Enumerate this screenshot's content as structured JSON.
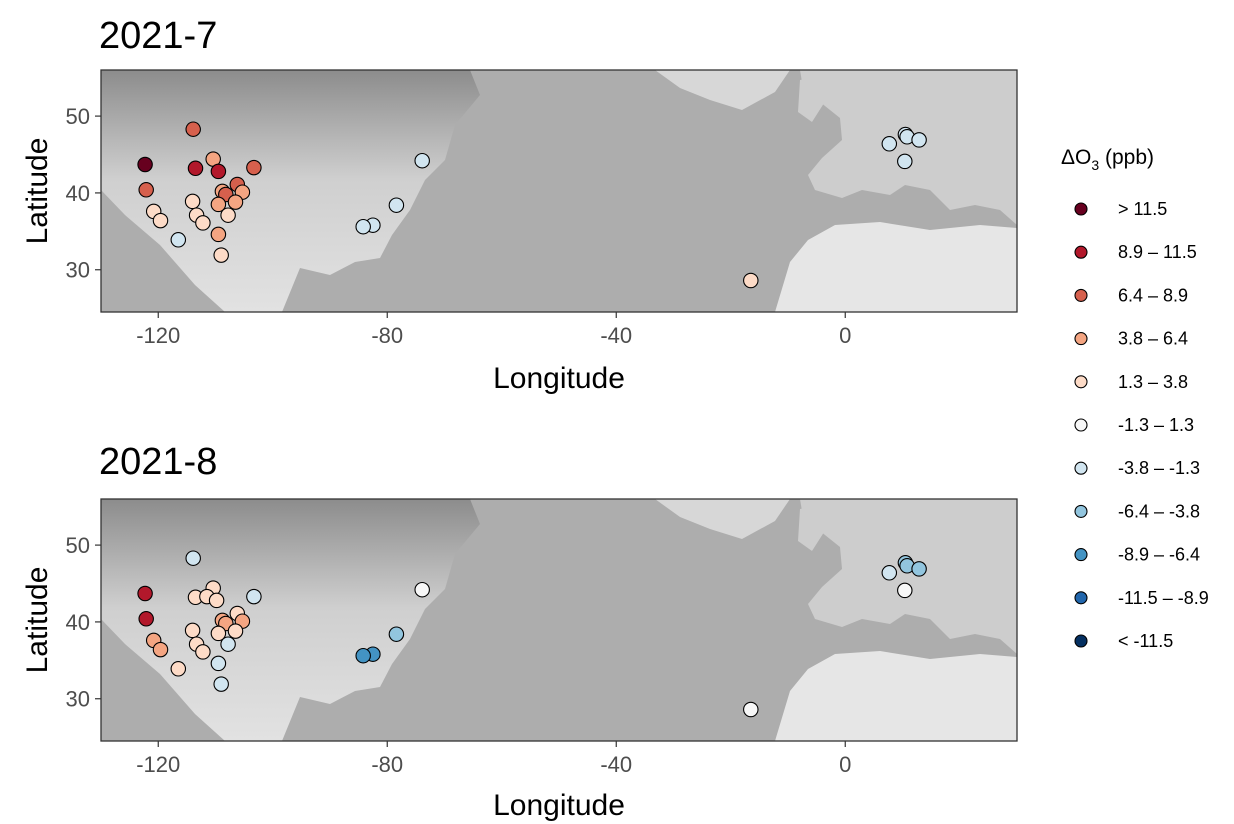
{
  "chart_data": [
    {
      "type": "scatter",
      "title": "2021-7",
      "xlabel": "Longitude",
      "ylabel": "Latitude",
      "xlim": [
        -130,
        30
      ],
      "ylim": [
        24.5,
        56
      ],
      "xticks": [
        -120,
        -80,
        -40,
        0
      ],
      "yticks": [
        30,
        40,
        50
      ],
      "xtick_labels": [
        "-120",
        "-80",
        "-40",
        "0"
      ],
      "ytick_labels": [
        "30",
        "40",
        "50"
      ],
      "background": "grayscale relief basemap",
      "points": [
        {
          "lon": -122.3,
          "lat": 43.7,
          "value": 12.5
        },
        {
          "lon": -122.1,
          "lat": 40.4,
          "value": 7.5
        },
        {
          "lon": -113.9,
          "lat": 48.3,
          "value": 7.5
        },
        {
          "lon": -113.5,
          "lat": 43.2,
          "value": 10.0
        },
        {
          "lon": -110.4,
          "lat": 44.4,
          "value": 5.0
        },
        {
          "lon": -109.5,
          "lat": 42.8,
          "value": 10.0
        },
        {
          "lon": -103.3,
          "lat": 43.3,
          "value": 7.5
        },
        {
          "lon": -106.2,
          "lat": 41.1,
          "value": 7.5
        },
        {
          "lon": -108.8,
          "lat": 40.2,
          "value": 5.0
        },
        {
          "lon": -108.2,
          "lat": 39.8,
          "value": 7.5
        },
        {
          "lon": -105.3,
          "lat": 40.1,
          "value": 5.0
        },
        {
          "lon": -109.5,
          "lat": 38.5,
          "value": 5.0
        },
        {
          "lon": -106.5,
          "lat": 38.8,
          "value": 5.0
        },
        {
          "lon": -114.0,
          "lat": 38.9,
          "value": 2.5
        },
        {
          "lon": -120.8,
          "lat": 37.6,
          "value": 2.5
        },
        {
          "lon": -119.6,
          "lat": 36.4,
          "value": 2.5
        },
        {
          "lon": -113.3,
          "lat": 37.1,
          "value": 2.5
        },
        {
          "lon": -112.2,
          "lat": 36.1,
          "value": 2.5
        },
        {
          "lon": -107.8,
          "lat": 37.1,
          "value": 2.5
        },
        {
          "lon": -109.5,
          "lat": 34.6,
          "value": 5.0
        },
        {
          "lon": -109.0,
          "lat": 31.9,
          "value": 2.5
        },
        {
          "lon": -116.5,
          "lat": 33.9,
          "value": -2.5
        },
        {
          "lon": -73.9,
          "lat": 44.2,
          "value": -2.5
        },
        {
          "lon": -78.4,
          "lat": 38.4,
          "value": -2.5
        },
        {
          "lon": -82.5,
          "lat": 35.8,
          "value": -2.5
        },
        {
          "lon": -84.2,
          "lat": 35.6,
          "value": -2.5
        },
        {
          "lon": -16.5,
          "lat": 28.6,
          "value": 2.5
        },
        {
          "lon": 7.7,
          "lat": 46.4,
          "value": -2.5
        },
        {
          "lon": 10.5,
          "lat": 47.6,
          "value": -2.5
        },
        {
          "lon": 10.8,
          "lat": 47.3,
          "value": -2.5
        },
        {
          "lon": 12.9,
          "lat": 46.9,
          "value": -2.5
        },
        {
          "lon": 10.4,
          "lat": 44.1,
          "value": -2.5
        }
      ]
    },
    {
      "type": "scatter",
      "title": "2021-8",
      "xlabel": "Longitude",
      "ylabel": "Latitude",
      "xlim": [
        -130,
        30
      ],
      "ylim": [
        24.5,
        56
      ],
      "xticks": [
        -120,
        -80,
        -40,
        0
      ],
      "yticks": [
        30,
        40,
        50
      ],
      "xtick_labels": [
        "-120",
        "-80",
        "-40",
        "0"
      ],
      "ytick_labels": [
        "30",
        "40",
        "50"
      ],
      "background": "grayscale relief basemap",
      "points": [
        {
          "lon": -122.3,
          "lat": 43.7,
          "value": 10.0
        },
        {
          "lon": -122.1,
          "lat": 40.4,
          "value": 10.0
        },
        {
          "lon": -113.9,
          "lat": 48.3,
          "value": -2.5
        },
        {
          "lon": -113.5,
          "lat": 43.2,
          "value": 2.5
        },
        {
          "lon": -110.4,
          "lat": 44.4,
          "value": 2.5
        },
        {
          "lon": -111.5,
          "lat": 43.3,
          "value": 2.5
        },
        {
          "lon": -109.8,
          "lat": 42.8,
          "value": 2.5
        },
        {
          "lon": -103.3,
          "lat": 43.3,
          "value": -2.5
        },
        {
          "lon": -106.2,
          "lat": 41.1,
          "value": 2.5
        },
        {
          "lon": -108.8,
          "lat": 40.2,
          "value": 5.0
        },
        {
          "lon": -108.2,
          "lat": 39.8,
          "value": 5.0
        },
        {
          "lon": -105.3,
          "lat": 40.1,
          "value": 5.0
        },
        {
          "lon": -109.5,
          "lat": 38.5,
          "value": 2.5
        },
        {
          "lon": -106.5,
          "lat": 38.8,
          "value": 2.5
        },
        {
          "lon": -114.0,
          "lat": 38.9,
          "value": 2.5
        },
        {
          "lon": -120.8,
          "lat": 37.6,
          "value": 5.0
        },
        {
          "lon": -119.6,
          "lat": 36.4,
          "value": 5.0
        },
        {
          "lon": -113.3,
          "lat": 37.1,
          "value": 2.5
        },
        {
          "lon": -112.2,
          "lat": 36.1,
          "value": 2.5
        },
        {
          "lon": -107.8,
          "lat": 37.1,
          "value": -2.5
        },
        {
          "lon": -109.5,
          "lat": 34.6,
          "value": -2.5
        },
        {
          "lon": -109.0,
          "lat": 31.9,
          "value": -2.5
        },
        {
          "lon": -116.5,
          "lat": 33.9,
          "value": 2.5
        },
        {
          "lon": -73.9,
          "lat": 44.2,
          "value": 0.0
        },
        {
          "lon": -78.4,
          "lat": 38.4,
          "value": -5.0
        },
        {
          "lon": -82.5,
          "lat": 35.8,
          "value": -7.5
        },
        {
          "lon": -84.2,
          "lat": 35.6,
          "value": -7.5
        },
        {
          "lon": -16.5,
          "lat": 28.6,
          "value": 0.0
        },
        {
          "lon": 7.7,
          "lat": 46.4,
          "value": -2.5
        },
        {
          "lon": 10.5,
          "lat": 47.7,
          "value": -5.0
        },
        {
          "lon": 10.8,
          "lat": 47.3,
          "value": -5.0
        },
        {
          "lon": 12.9,
          "lat": 46.9,
          "value": -5.0
        },
        {
          "lon": 10.4,
          "lat": 44.1,
          "value": 0.0
        }
      ]
    }
  ],
  "legend": {
    "title_prefix": "ΔO",
    "title_subscript": "3",
    "title_suffix": " (ppb)",
    "placement": "right",
    "bins": [
      {
        "label": "> 11.5",
        "min": 11.5,
        "max": null,
        "color": "#67001f"
      },
      {
        "label": "8.9 – 11.5",
        "min": 8.9,
        "max": 11.5,
        "color": "#b2182b"
      },
      {
        "label": "6.4 – 8.9",
        "min": 6.4,
        "max": 8.9,
        "color": "#d6604d"
      },
      {
        "label": "3.8 – 6.4",
        "min": 3.8,
        "max": 6.4,
        "color": "#f4a582"
      },
      {
        "label": "1.3 – 3.8",
        "min": 1.3,
        "max": 3.8,
        "color": "#fddbc7"
      },
      {
        "label": "-1.3 – 1.3",
        "min": -1.3,
        "max": 1.3,
        "color": "#f7f7f7"
      },
      {
        "label": "-3.8 – -1.3",
        "min": -3.8,
        "max": -1.3,
        "color": "#d1e5f0"
      },
      {
        "label": "-6.4 – -3.8",
        "min": -6.4,
        "max": -3.8,
        "color": "#92c5de"
      },
      {
        "label": "-8.9 – -6.4",
        "min": -8.9,
        "max": -6.4,
        "color": "#4393c3"
      },
      {
        "label": "-11.5 – -8.9",
        "min": -11.5,
        "max": -8.9,
        "color": "#2166ac"
      },
      {
        "label": "< -11.5",
        "min": null,
        "max": -11.5,
        "color": "#053061"
      }
    ]
  },
  "colors": {
    "ocean": "#adadad",
    "land": "#dcdcdc",
    "land_dark": "#9a9a9a",
    "marker_outline": "#000000",
    "axis_text": "#4d4d4d"
  }
}
